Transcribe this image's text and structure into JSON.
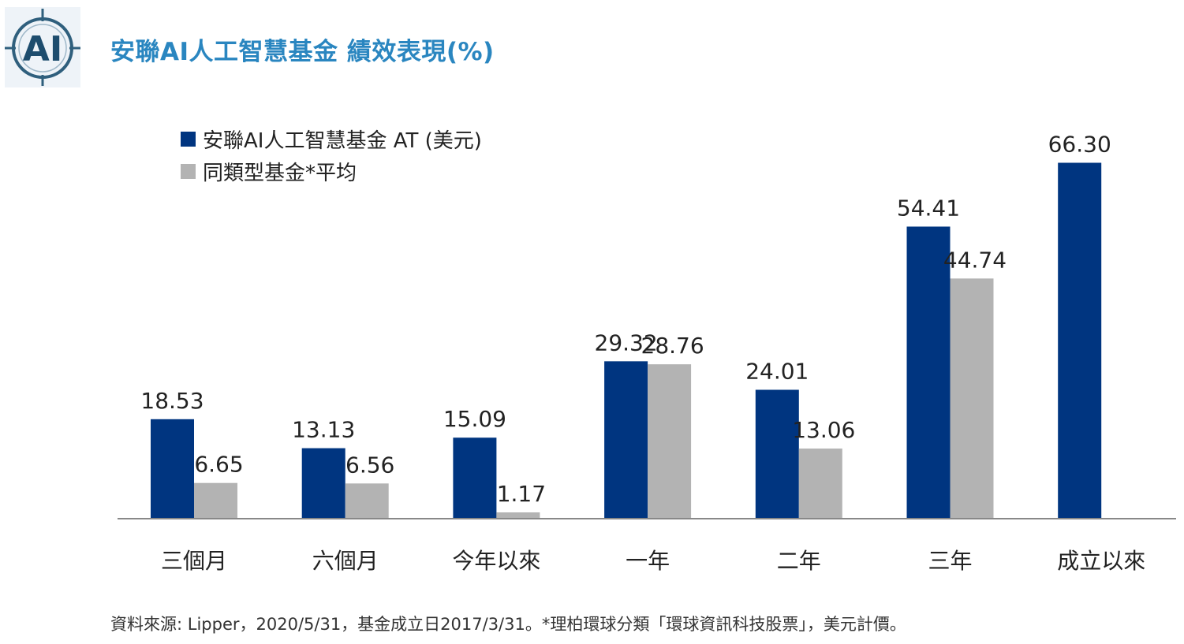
{
  "header": {
    "logo_text": "AI",
    "title": "安聯AI人工智慧基金  績效表現(%)"
  },
  "chart_data": {
    "type": "bar",
    "title": "安聯AI人工智慧基金  績效表現(%)",
    "categories": [
      "三個月",
      "六個月",
      "今年以來",
      "一年",
      "二年",
      "三年",
      "成立以來"
    ],
    "series": [
      {
        "name": "安聯AI人工智慧基金 AT (美元)",
        "color": "#003580",
        "values": [
          18.53,
          13.13,
          15.09,
          29.32,
          24.01,
          54.41,
          66.3
        ],
        "labels": [
          "18.53",
          "13.13",
          "15.09",
          "29.32",
          "24.01",
          "54.41",
          "66.30"
        ]
      },
      {
        "name": "同類型基金*平均",
        "color": "#b3b3b3",
        "values": [
          6.65,
          6.56,
          1.17,
          28.76,
          13.06,
          44.74,
          null
        ],
        "labels": [
          "6.65",
          "6.56",
          "1.17",
          "28.76",
          "13.06",
          "44.74",
          null
        ]
      }
    ],
    "legend_position": "top-left",
    "grid": false,
    "ylim": [
      0,
      70
    ]
  },
  "footnote": "資料來源: Lipper，2020/5/31，基金成立日2017/3/31。*理柏環球分類「環球資訊科技股票」，美元計價。"
}
